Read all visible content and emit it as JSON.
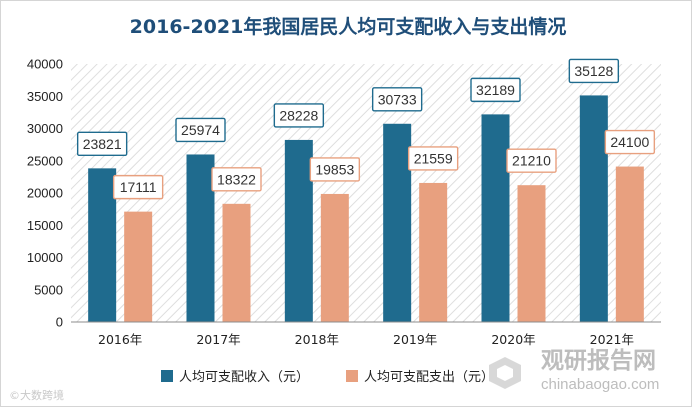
{
  "chart_data": {
    "type": "bar",
    "title": "2016-2021年我国居民人均可支配收入与支出情况",
    "categories": [
      "2016年",
      "2017年",
      "2018年",
      "2019年",
      "2020年",
      "2021年"
    ],
    "series": [
      {
        "name": "人均可支配收入（元）",
        "color": "#1f6b8e",
        "label_border": "#1f6b8e",
        "values": [
          23821,
          25974,
          28228,
          30733,
          32189,
          35128
        ]
      },
      {
        "name": "人均可支配支出（元）",
        "color": "#e8a07f",
        "label_border": "#e8a07f",
        "values": [
          17111,
          18322,
          19853,
          21559,
          21210,
          24100
        ]
      }
    ],
    "yticks": [
      0,
      5000,
      10000,
      15000,
      20000,
      25000,
      30000,
      35000,
      40000
    ],
    "ylim": [
      0,
      40000
    ],
    "legend_position": "bottom",
    "plot_background": "diagonal-hatch"
  },
  "watermark": {
    "brand": "观研报告网",
    "url": "chinabaogao.com"
  },
  "source_mark": "©大数跨境"
}
